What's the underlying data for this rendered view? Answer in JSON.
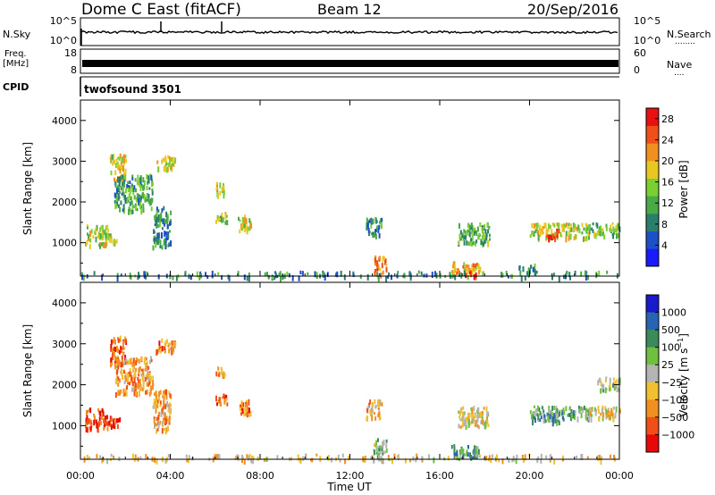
{
  "header": {
    "station": "Dome C East (fitACF)",
    "beam": "Beam 12",
    "date": "20/Sep/2016"
  },
  "left_labels": {
    "nsky": "N.Sky",
    "freq_line1": "Freq.",
    "freq_line2": "[MHz]",
    "cpid": "CPID"
  },
  "right_labels": {
    "nsearch": "N.Search",
    "nsearch_dots": "........",
    "nave": "Nave",
    "nave_dots": "...."
  },
  "noise_panel": {
    "left_ticks": [
      "10^5",
      "10^0"
    ],
    "right_ticks": [
      "10^5",
      "10^0"
    ]
  },
  "freq_panel": {
    "left_ticks": [
      "18",
      "8"
    ],
    "right_ticks": [
      "60",
      "0"
    ]
  },
  "cpid_panel": {
    "program": "twofsound 3501"
  },
  "colors": {
    "power": [
      "#1a1aff",
      "#1d50c8",
      "#2a7f6a",
      "#4aaa48",
      "#7ad030",
      "#e8c820",
      "#f09020",
      "#f05018",
      "#e81010"
    ],
    "velocity": [
      "#1a1acd",
      "#2864b4",
      "#3a8a5a",
      "#70c040",
      "#b4b4b4",
      "#f0c030",
      "#f09020",
      "#f05018",
      "#e80808"
    ],
    "trace": "#000000"
  },
  "chart_data": [
    {
      "type": "heatmap",
      "name": "power",
      "ylabel": "Slant Range [km]",
      "xlabel": "",
      "x_ticks": [
        "00:00",
        "04:00",
        "08:00",
        "12:00",
        "16:00",
        "20:00",
        "00:00"
      ],
      "y_ticks": [
        "1000",
        "2000",
        "3000",
        "4000"
      ],
      "xlim": [
        0,
        24
      ],
      "ylim": [
        180,
        4500
      ],
      "colorbar": {
        "label": "Power [dB]",
        "ticks": [
          "4",
          "8",
          "12",
          "16",
          "20",
          "24",
          "28"
        ],
        "range": [
          0,
          30
        ]
      },
      "regions": [
        {
          "t": [
            0.2,
            1.2
          ],
          "r": [
            950,
            1450
          ],
          "level": 0.55
        },
        {
          "t": [
            1.0,
            1.6
          ],
          "r": [
            1050,
            1250
          ],
          "level": 0.5
        },
        {
          "t": [
            1.3,
            2.0
          ],
          "r": [
            2500,
            3200
          ],
          "level": 0.6
        },
        {
          "t": [
            1.5,
            3.2
          ],
          "r": [
            1800,
            2700
          ],
          "level": 0.35
        },
        {
          "t": [
            3.3,
            4.2
          ],
          "r": [
            2850,
            3150
          ],
          "level": 0.6
        },
        {
          "t": [
            3.2,
            4.0
          ],
          "r": [
            900,
            1900
          ],
          "level": 0.3
        },
        {
          "t": [
            6.0,
            6.4
          ],
          "r": [
            2200,
            2500
          ],
          "level": 0.5
        },
        {
          "t": [
            6.0,
            6.5
          ],
          "r": [
            1500,
            1800
          ],
          "level": 0.5
        },
        {
          "t": [
            7.0,
            7.6
          ],
          "r": [
            1300,
            1700
          ],
          "level": 0.55
        },
        {
          "t": [
            13.0,
            13.6
          ],
          "r": [
            250,
            700
          ],
          "level": 0.75
        },
        {
          "t": [
            12.7,
            13.4
          ],
          "r": [
            1200,
            1650
          ],
          "level": 0.3
        },
        {
          "t": [
            16.5,
            17.8
          ],
          "r": [
            250,
            550
          ],
          "level": 0.7
        },
        {
          "t": [
            17.1,
            17.6
          ],
          "r": [
            180,
            320
          ],
          "level": 0.95
        },
        {
          "t": [
            16.8,
            18.2
          ],
          "r": [
            1000,
            1500
          ],
          "level": 0.4
        },
        {
          "t": [
            20.0,
            22.6
          ],
          "r": [
            1150,
            1500
          ],
          "level": 0.55
        },
        {
          "t": [
            20.7,
            21.3
          ],
          "r": [
            1100,
            1350
          ],
          "level": 0.9
        },
        {
          "t": [
            22.5,
            24.0
          ],
          "r": [
            1200,
            1500
          ],
          "level": 0.45
        },
        {
          "t": [
            19.5,
            20.3
          ],
          "r": [
            300,
            500
          ],
          "level": 0.3
        },
        {
          "t": [
            0.0,
            24.0
          ],
          "r": [
            180,
            320
          ],
          "level": 0.3
        }
      ]
    },
    {
      "type": "heatmap",
      "name": "velocity",
      "ylabel": "Slant Range [km]",
      "xlabel": "Time UT",
      "x_ticks": [
        "00:00",
        "04:00",
        "08:00",
        "12:00",
        "16:00",
        "20:00",
        "00:00"
      ],
      "y_ticks": [
        "1000",
        "2000",
        "3000",
        "4000"
      ],
      "xlim": [
        0,
        24
      ],
      "ylim": [
        180,
        4500
      ],
      "colorbar": {
        "label": "Velocity [m s^-1]",
        "ticks": [
          "1000",
          "500",
          "100",
          "25",
          "-25",
          "-100",
          "-500",
          "-1000"
        ]
      },
      "regions": [
        {
          "t": [
            0.2,
            1.2
          ],
          "r": [
            950,
            1450
          ],
          "level": 0.85
        },
        {
          "t": [
            1.0,
            1.8
          ],
          "r": [
            1000,
            1250
          ],
          "level": 0.9
        },
        {
          "t": [
            1.3,
            2.0
          ],
          "r": [
            2500,
            3200
          ],
          "level": 0.8
        },
        {
          "t": [
            1.5,
            3.2
          ],
          "r": [
            1800,
            2700
          ],
          "level": 0.7
        },
        {
          "t": [
            3.3,
            4.2
          ],
          "r": [
            2850,
            3150
          ],
          "level": 0.75
        },
        {
          "t": [
            3.2,
            4.0
          ],
          "r": [
            900,
            1900
          ],
          "level": 0.7
        },
        {
          "t": [
            6.0,
            6.4
          ],
          "r": [
            2200,
            2500
          ],
          "level": 0.75
        },
        {
          "t": [
            6.0,
            6.5
          ],
          "r": [
            1500,
            1800
          ],
          "level": 0.8
        },
        {
          "t": [
            7.0,
            7.6
          ],
          "r": [
            1300,
            1700
          ],
          "level": 0.75
        },
        {
          "t": [
            13.0,
            13.6
          ],
          "r": [
            250,
            700
          ],
          "level": 0.4
        },
        {
          "t": [
            12.7,
            13.4
          ],
          "r": [
            1200,
            1650
          ],
          "level": 0.65
        },
        {
          "t": [
            16.5,
            17.8
          ],
          "r": [
            250,
            550
          ],
          "level": 0.3
        },
        {
          "t": [
            16.8,
            18.2
          ],
          "r": [
            1000,
            1500
          ],
          "level": 0.55
        },
        {
          "t": [
            20.0,
            22.6
          ],
          "r": [
            1150,
            1500
          ],
          "level": 0.35
        },
        {
          "t": [
            20.7,
            21.3
          ],
          "r": [
            1100,
            1350
          ],
          "level": 0.3
        },
        {
          "t": [
            22.5,
            24.0
          ],
          "r": [
            1200,
            1500
          ],
          "level": 0.55
        },
        {
          "t": [
            23.0,
            24.0
          ],
          "r": [
            1900,
            2200
          ],
          "level": 0.45
        },
        {
          "t": [
            0.0,
            24.0
          ],
          "r": [
            180,
            320
          ],
          "level": 0.6
        }
      ]
    }
  ]
}
